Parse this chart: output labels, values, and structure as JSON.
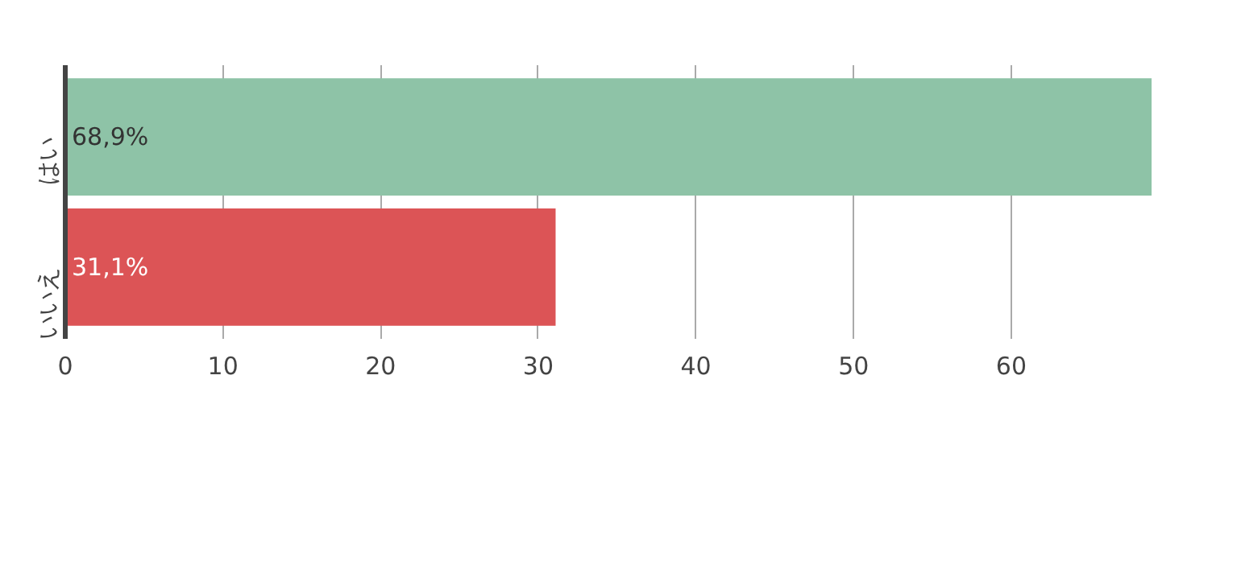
{
  "chart_data": {
    "type": "bar",
    "orientation": "horizontal",
    "categories": [
      "はい",
      "いいえ"
    ],
    "values": [
      68.9,
      31.1
    ],
    "colors": [
      "#8ec3a7",
      "#dc5456"
    ],
    "value_labels": [
      "68,9%",
      "31,1%"
    ],
    "xlim": [
      0,
      69
    ],
    "xticks": [
      0,
      10,
      20,
      30,
      40,
      50,
      60
    ],
    "grid": "x"
  }
}
